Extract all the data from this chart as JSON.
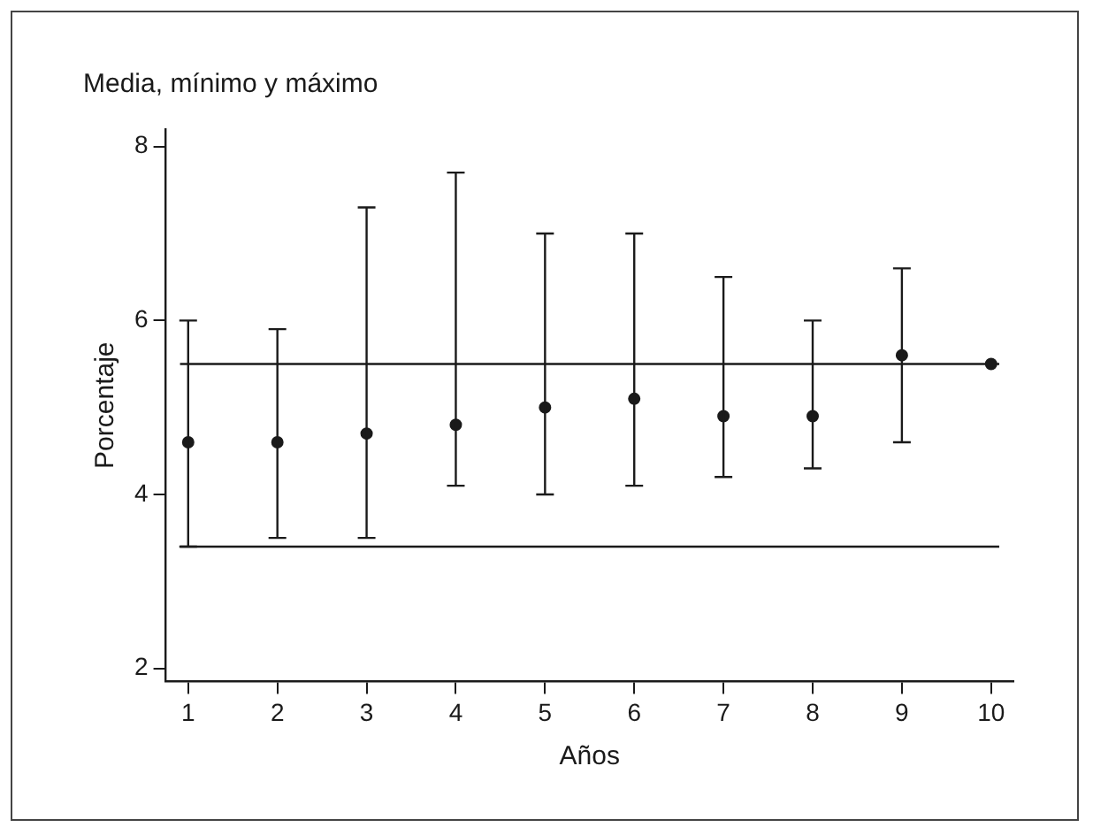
{
  "chart_data": {
    "type": "scatter",
    "title": "Media, mínimo y máximo",
    "xlabel": "Años",
    "ylabel": "Porcentaje",
    "x": [
      1,
      2,
      3,
      4,
      5,
      6,
      7,
      8,
      9,
      10
    ],
    "values": [
      4.6,
      4.6,
      4.7,
      4.8,
      5.0,
      5.1,
      4.9,
      4.9,
      5.6,
      5.5
    ],
    "errors": [
      [
        3.4,
        6.0
      ],
      [
        3.5,
        5.9
      ],
      [
        3.5,
        7.3
      ],
      [
        4.1,
        7.7
      ],
      [
        4.0,
        7.0
      ],
      [
        4.1,
        7.0
      ],
      [
        4.2,
        6.5
      ],
      [
        4.3,
        6.0
      ],
      [
        4.6,
        6.6
      ],
      null
    ],
    "color": "#1a1a1a",
    "marker": "circle",
    "xlim": [
      0.75,
      10.25
    ],
    "xticks": [
      1,
      2,
      3,
      4,
      5,
      6,
      7,
      8,
      9,
      10
    ],
    "ylim": [
      1.85,
      8.2
    ],
    "yticks": [
      2,
      4,
      6,
      8
    ],
    "ref_lines": [
      {
        "axis": "y",
        "value": 5.5
      },
      {
        "axis": "y",
        "value": 3.4
      }
    ],
    "grid": false,
    "legend": false
  }
}
